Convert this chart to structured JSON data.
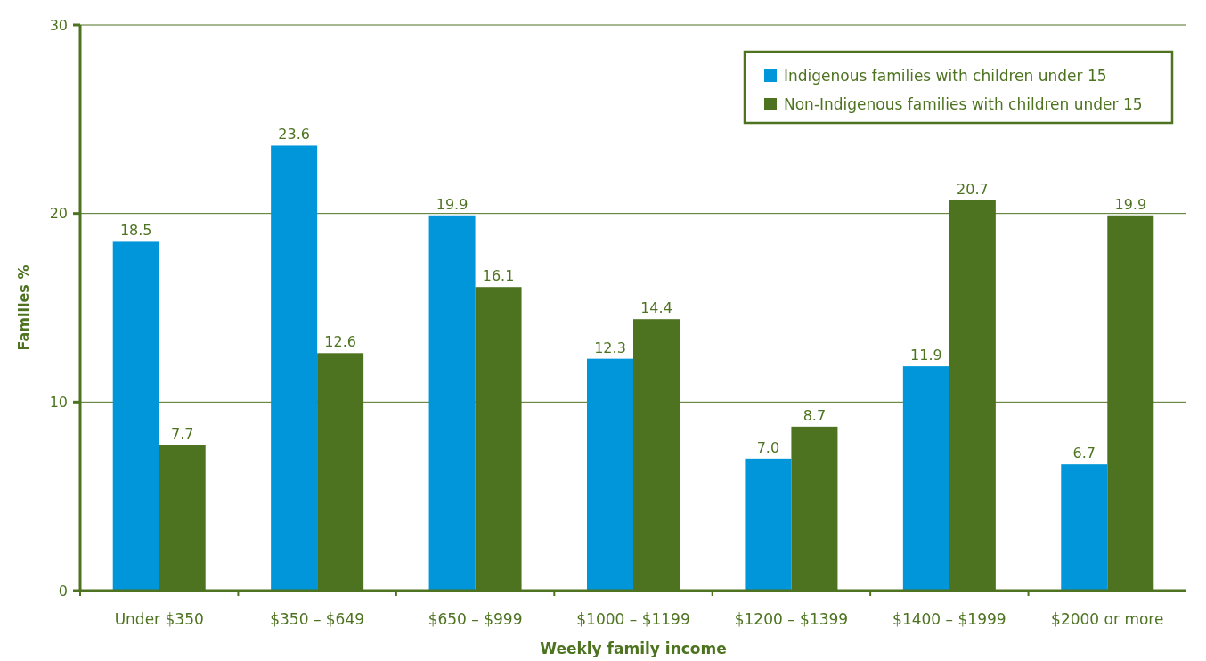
{
  "chart_data": {
    "type": "bar",
    "xlabel": "Weekly family income",
    "ylabel": "Families %",
    "categories": [
      "Under $350",
      "$350 – $649",
      "$650 – $999",
      "$1000 – $1199",
      "$1200 – $1399",
      "$1400 – $1999",
      "$2000 or more"
    ],
    "series": [
      {
        "name": "Indigenous families with children under 15",
        "color": "#0096d9",
        "values": [
          18.5,
          23.6,
          19.9,
          12.3,
          7.0,
          11.9,
          6.7
        ],
        "value_labels": [
          "18.5",
          "23.6",
          "19.9",
          "12.3",
          "7.0",
          "11.9",
          "6.7"
        ]
      },
      {
        "name": "Non-Indigenous families with children under 15",
        "color": "#4d7320",
        "values": [
          7.7,
          12.6,
          16.1,
          14.4,
          8.7,
          20.7,
          19.9
        ],
        "value_labels": [
          "7.7",
          "12.6",
          "16.1",
          "14.4",
          "8.7",
          "20.7",
          "19.9"
        ]
      }
    ],
    "ylim": [
      0,
      30
    ],
    "yticks": [
      0,
      10,
      20,
      30
    ],
    "grid": "y",
    "legend": "top right"
  }
}
